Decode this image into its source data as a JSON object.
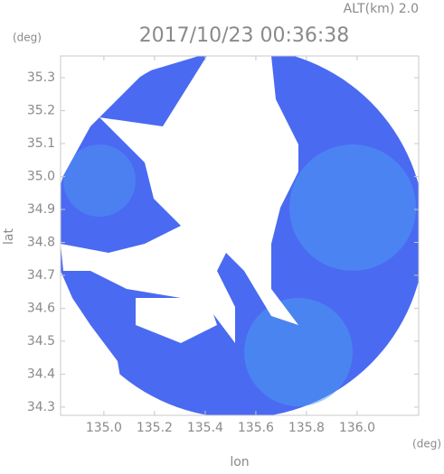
{
  "chart_data": {
    "type": "map",
    "title": "2017/10/23 00:36:38",
    "subtitle": "ALT(km) 2.0",
    "y_unit": "(deg)",
    "x_unit": "(deg)",
    "xlabel": "lon",
    "ylabel": "lat",
    "xlim": [
      134.829,
      136.243
    ],
    "ylim": [
      34.275,
      35.366
    ],
    "xticks": [
      {
        "value": 135,
        "label": "135.0"
      },
      135.2,
      135.4,
      135.6,
      135.8,
      {
        "value": 136,
        "label": "136.0"
      }
    ],
    "yticks": [
      35.3,
      35.2,
      35.1,
      {
        "value": 35,
        "label": "35.0"
      },
      34.9,
      34.8,
      34.7,
      34.6,
      34.5,
      34.4,
      34.3
    ]
  }
}
